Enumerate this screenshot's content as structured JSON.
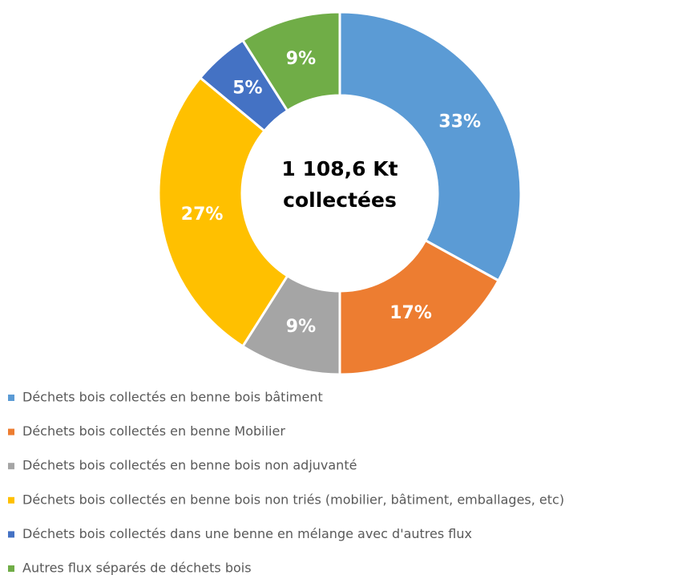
{
  "chart_data": {
    "type": "donut",
    "center_text": [
      "1 108,6 Kt",
      "collectées"
    ],
    "categories": [
      "Déchets bois collectés en benne bois bâtiment",
      "Déchets bois collectés en benne Mobilier",
      "Déchets bois collectés en benne bois non adjuvanté",
      "Déchets bois collectés en benne bois non triés (mobilier, bâtiment, emballages, etc)",
      "Déchets bois collectés dans une benne en mélange avec d'autres flux",
      "Autres flux séparés de déchets bois"
    ],
    "values": [
      33,
      17,
      9,
      27,
      5,
      9
    ],
    "value_labels": [
      "33%",
      "17%",
      "9%",
      "27%",
      "5%",
      "9%"
    ],
    "colors": [
      "#5b9bd5",
      "#ed7d31",
      "#a5a5a5",
      "#ffc000",
      "#4472c4",
      "#70ad47"
    ],
    "legend": "bottom-left"
  }
}
